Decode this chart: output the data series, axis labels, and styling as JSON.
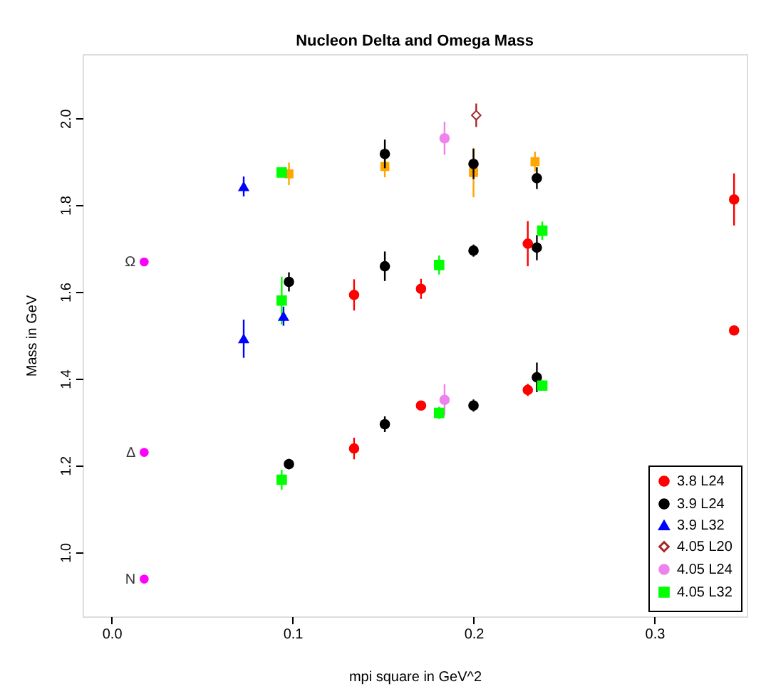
{
  "chart_data": {
    "type": "scatter",
    "title": "Nucleon Delta and Omega Mass",
    "xlabel": "mpi square in GeV^2",
    "ylabel": "Mass in GeV",
    "xlim": [
      -0.016,
      0.351
    ],
    "ylim": [
      0.852,
      2.148
    ],
    "xticks": [
      {
        "value": 0,
        "label": "0.0"
      },
      {
        "value": 0.1,
        "label": "0.1"
      },
      {
        "value": 0.2,
        "label": "0.2"
      },
      {
        "value": 0.3,
        "label": "0.3"
      }
    ],
    "yticks": [
      {
        "value": 1,
        "label": "1.0"
      },
      {
        "value": 1.2,
        "label": "1.2"
      },
      {
        "value": 1.4,
        "label": "1.4"
      },
      {
        "value": 1.6,
        "label": "1.6"
      },
      {
        "value": 1.8,
        "label": "1.8"
      },
      {
        "value": 2,
        "label": "2.0"
      }
    ],
    "grid": false,
    "legend": "right",
    "series": [
      {
        "name": "3.8 L24",
        "color": "#ff0000",
        "marker": "circle",
        "x": [
          0.134,
          0.171,
          0.23,
          0.344,
          0.134,
          0.171,
          0.23,
          0.344
        ],
        "values": [
          1.593,
          1.607,
          1.711,
          1.813,
          1.239,
          1.338,
          1.374,
          1.511
        ],
        "errors": [
          0.036,
          0.023,
          0.052,
          0.06,
          0.025,
          null,
          0.014,
          0.01
        ]
      },
      {
        "name": "3.9 L24",
        "color": "#000000",
        "marker": "circle",
        "x": [
          0.151,
          0.2,
          0.235,
          0.098,
          0.151,
          0.2,
          0.235,
          0.098,
          0.151,
          0.2,
          0.235
        ],
        "values": [
          1.918,
          1.895,
          1.862,
          1.623,
          1.659,
          1.695,
          1.702,
          1.203,
          1.295,
          1.338,
          1.403
        ],
        "errors": [
          0.033,
          0.035,
          0.025,
          0.022,
          0.034,
          0.014,
          0.029,
          0.012,
          0.018,
          0.014,
          0.034
        ]
      },
      {
        "name": "3.9 L32",
        "color": "#0000ff",
        "marker": "triangle",
        "x": [
          0.073,
          0.095,
          0.073
        ],
        "values": [
          1.843,
          1.544,
          1.492
        ],
        "errors": [
          0.023,
          0.022,
          0.044
        ]
      },
      {
        "name": "4.05 L20",
        "color": "#a52a2a",
        "marker": "diamond",
        "x": [
          0.2015
        ],
        "values": [
          2.007
        ],
        "errors": [
          0.027
        ]
      },
      {
        "name": "4.05 L24",
        "color": "#ee82ee",
        "marker": "circle",
        "x": [
          0.184,
          0.184
        ],
        "values": [
          1.954,
          1.351
        ],
        "errors": [
          0.038,
          0.036
        ]
      },
      {
        "name": "4.05 L32",
        "color": "#00ff00",
        "marker": "square",
        "x": [
          0.094,
          0.094,
          0.181,
          0.238,
          0.094,
          0.181,
          0.238
        ],
        "values": [
          1.875,
          1.58,
          1.662,
          1.741,
          1.167,
          1.321,
          1.384
        ],
        "errors": [
          0.01,
          0.055,
          0.022,
          0.021,
          0.023,
          0.014,
          0.012
        ]
      },
      {
        "color": "#ffa500",
        "marker": "square",
        "x": [
          0.098,
          0.151,
          0.2,
          0.234
        ],
        "values": [
          1.872,
          1.889,
          1.875,
          1.9
        ],
        "errors": [
          0.026,
          0.025,
          0.057,
          0.023
        ]
      },
      {
        "color": "#ff00ff",
        "marker": "circle",
        "x": [
          0.018,
          0.018,
          0.018
        ],
        "values": [
          1.669,
          1.23,
          0.938
        ]
      }
    ],
    "annotations": [
      "Ω",
      "Δ",
      "N"
    ]
  }
}
